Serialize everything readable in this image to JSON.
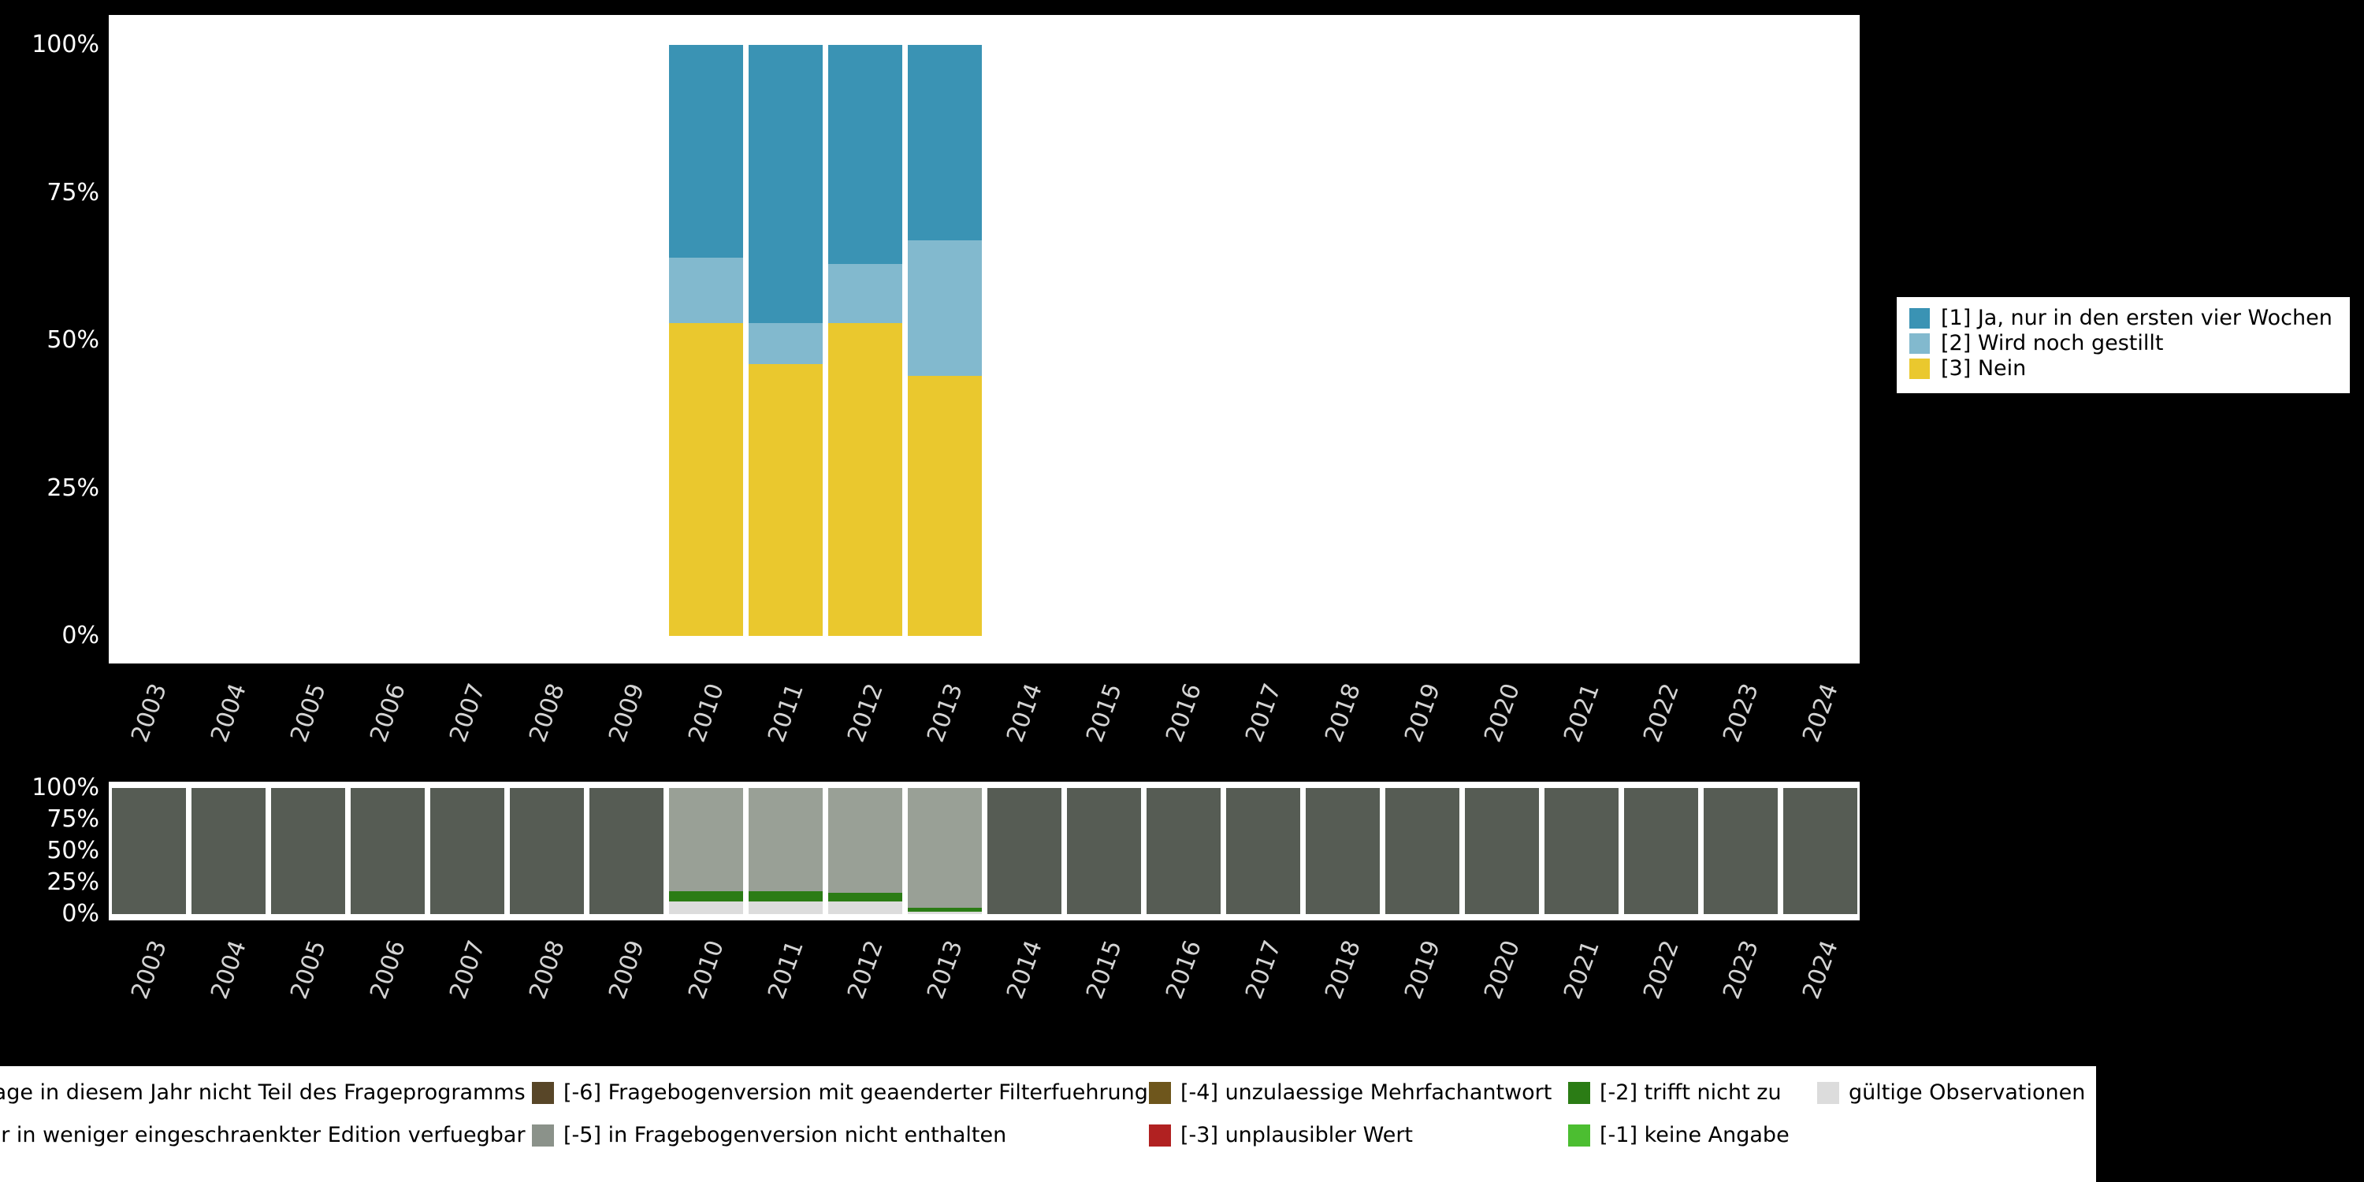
{
  "colors": {
    "background": "#000000",
    "plot_background": "#ffffff",
    "axis_text": "#ffffff",
    "year_text": "#d4d4d4",
    "legend_background": "#ffffff",
    "legend_text": "#000000"
  },
  "years": [
    "2003",
    "2004",
    "2005",
    "2006",
    "2007",
    "2008",
    "2009",
    "2010",
    "2011",
    "2012",
    "2013",
    "2014",
    "2015",
    "2016",
    "2017",
    "2018",
    "2019",
    "2020",
    "2021",
    "2022",
    "2023",
    "2024"
  ],
  "y_ticks_top_to_bottom": [
    "100%",
    "75%",
    "50%",
    "25%",
    "0%"
  ],
  "answers_legend": {
    "items": [
      {
        "label": "[1] Ja, nur in den ersten vier Wochen",
        "color": "#3a93b4"
      },
      {
        "label": "[2] Wird noch gestillt",
        "color": "#82b9ce"
      },
      {
        "label": "[3] Nein",
        "color": "#eac82e"
      }
    ]
  },
  "missings_legend": {
    "rows": [
      [
        {
          "label": "Frage in diesem Jahr nicht Teil des Frageprogramms",
          "color": "#565c54"
        },
        {
          "label": "[-6] Fragebogenversion mit geaenderter Filterfuehrung",
          "color": "#584628"
        },
        {
          "label": "[-4] unzulaessige Mehrfachantwort",
          "color": "#6e561c"
        },
        {
          "label": "[-2] trifft nicht zu",
          "color": "#2b7c15"
        },
        {
          "label": "gültige Observationen",
          "color": "#dcdcdc"
        }
      ],
      [
        {
          "label": "nur in weniger eingeschraenkter Edition verfuegbar",
          "color": "#99a096"
        },
        {
          "label": "[-5] in Fragebogenversion nicht enthalten",
          "color": "#8b928a"
        },
        {
          "label": "[-3] unplausibler Wert",
          "color": "#b12121"
        },
        {
          "label": "[-1] keine Angabe",
          "color": "#4cbe31"
        }
      ]
    ]
  },
  "chart_data": [
    {
      "type": "bar",
      "stacked": true,
      "title": "",
      "xlabel": "",
      "ylabel": "",
      "ylim": [
        0,
        100
      ],
      "yticks": [
        "0%",
        "25%",
        "50%",
        "75%",
        "100%"
      ],
      "legend_position": "right",
      "categories": [
        "2003",
        "2004",
        "2005",
        "2006",
        "2007",
        "2008",
        "2009",
        "2010",
        "2011",
        "2012",
        "2013",
        "2014",
        "2015",
        "2016",
        "2017",
        "2018",
        "2019",
        "2020",
        "2021",
        "2022",
        "2023",
        "2024"
      ],
      "series": [
        {
          "name": "[3] Nein",
          "color": "#eac82e",
          "values": [
            0,
            0,
            0,
            0,
            0,
            0,
            0,
            53,
            46,
            53,
            44,
            0,
            0,
            0,
            0,
            0,
            0,
            0,
            0,
            0,
            0,
            0
          ]
        },
        {
          "name": "[2] Wird noch gestillt",
          "color": "#82b9ce",
          "values": [
            0,
            0,
            0,
            0,
            0,
            0,
            0,
            11,
            7,
            10,
            23,
            0,
            0,
            0,
            0,
            0,
            0,
            0,
            0,
            0,
            0,
            0
          ]
        },
        {
          "name": "[1] Ja, nur in den ersten vier Wochen",
          "color": "#3a93b4",
          "values": [
            0,
            0,
            0,
            0,
            0,
            0,
            0,
            36,
            47,
            37,
            33,
            0,
            0,
            0,
            0,
            0,
            0,
            0,
            0,
            0,
            0,
            0
          ]
        }
      ]
    },
    {
      "type": "bar",
      "stacked": true,
      "title": "",
      "xlabel": "",
      "ylabel": "",
      "ylim": [
        0,
        100
      ],
      "yticks": [
        "0%",
        "25%",
        "50%",
        "75%",
        "100%"
      ],
      "legend_position": "bottom",
      "categories": [
        "2003",
        "2004",
        "2005",
        "2006",
        "2007",
        "2008",
        "2009",
        "2010",
        "2011",
        "2012",
        "2013",
        "2014",
        "2015",
        "2016",
        "2017",
        "2018",
        "2019",
        "2020",
        "2021",
        "2022",
        "2023",
        "2024"
      ],
      "series": [
        {
          "name": "gültige Observationen",
          "color": "#dcdcdc",
          "values": [
            0,
            0,
            0,
            0,
            0,
            0,
            0,
            10,
            10,
            10,
            2,
            0,
            0,
            0,
            0,
            0,
            0,
            0,
            0,
            0,
            0,
            0
          ]
        },
        {
          "name": "[-2] trifft nicht zu",
          "color": "#2b7c15",
          "values": [
            0,
            0,
            0,
            0,
            0,
            0,
            0,
            8,
            8,
            7,
            3,
            0,
            0,
            0,
            0,
            0,
            0,
            0,
            0,
            0,
            0,
            0
          ]
        },
        {
          "name": "nur in weniger eingeschraenkter Edition verfuegbar",
          "color": "#99a096",
          "values": [
            0,
            0,
            0,
            0,
            0,
            0,
            0,
            82,
            82,
            83,
            95,
            0,
            0,
            0,
            0,
            0,
            0,
            0,
            0,
            0,
            0,
            0
          ]
        },
        {
          "name": "Frage in diesem Jahr nicht Teil des Frageprogramms",
          "color": "#565c54",
          "values": [
            100,
            100,
            100,
            100,
            100,
            100,
            100,
            0,
            0,
            0,
            0,
            100,
            100,
            100,
            100,
            100,
            100,
            100,
            100,
            100,
            100,
            100
          ]
        }
      ]
    }
  ]
}
